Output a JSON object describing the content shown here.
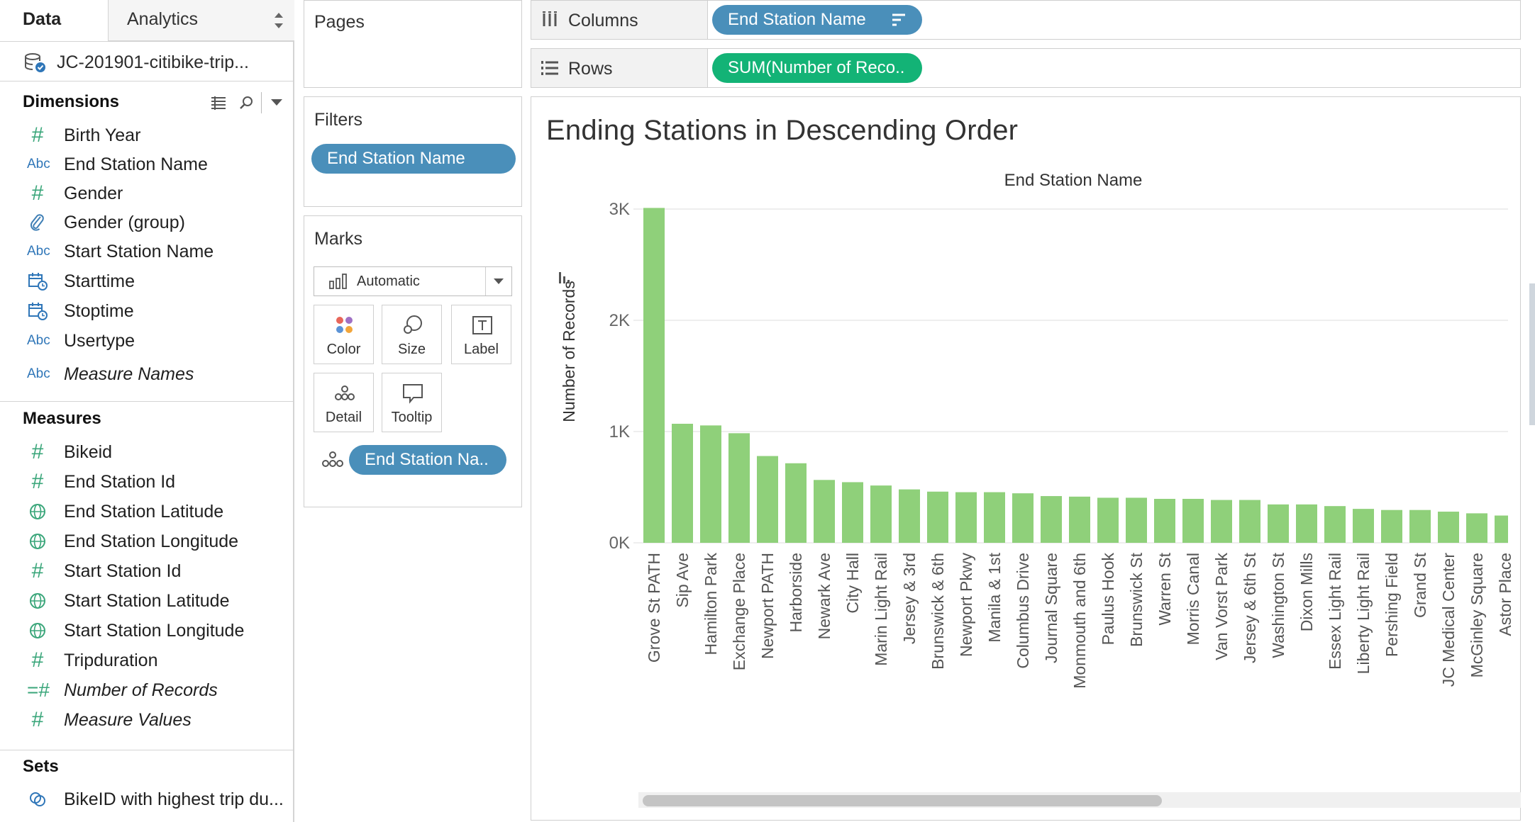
{
  "data_pane": {
    "tabs": [
      {
        "label": "Data"
      },
      {
        "label": "Analytics"
      }
    ],
    "datasource": "JC-201901-citibike-trip...",
    "sections": {
      "dimensions": "Dimensions",
      "measures": "Measures",
      "sets": "Sets"
    },
    "dimensions": [
      {
        "icon": "#",
        "label": "Birth Year"
      },
      {
        "icon": "Abc",
        "label": "End Station Name"
      },
      {
        "icon": "#",
        "label": "Gender"
      },
      {
        "icon": "paperclip",
        "label": "Gender (group)"
      },
      {
        "icon": "Abc",
        "label": "Start Station Name"
      },
      {
        "icon": "datetime",
        "label": "Starttime"
      },
      {
        "icon": "datetime",
        "label": "Stoptime"
      },
      {
        "icon": "Abc",
        "label": "Usertype"
      },
      {
        "icon": "Abc",
        "label": "Measure Names"
      }
    ],
    "measures": [
      {
        "icon": "#",
        "label": "Bikeid"
      },
      {
        "icon": "#",
        "label": "End Station Id"
      },
      {
        "icon": "globe",
        "label": "End Station Latitude"
      },
      {
        "icon": "globe",
        "label": "End Station Longitude"
      },
      {
        "icon": "#",
        "label": "Start Station Id"
      },
      {
        "icon": "globe",
        "label": "Start Station Latitude"
      },
      {
        "icon": "globe",
        "label": "Start Station Longitude"
      },
      {
        "icon": "#",
        "label": "Tripduration"
      },
      {
        "icon": "=#",
        "label": "Number of Records"
      },
      {
        "icon": "#",
        "label": "Measure Values"
      }
    ],
    "sets": [
      {
        "icon": "set",
        "label": "BikeID with highest trip du..."
      }
    ]
  },
  "cards": {
    "pages": "Pages",
    "filters": "Filters",
    "filter_pill": "End Station Name",
    "marks": "Marks",
    "mark_type": "Automatic",
    "mark_buttons": [
      "Color",
      "Size",
      "Label",
      "Detail",
      "Tooltip"
    ],
    "detail_pill": "End Station Na.."
  },
  "shelves": {
    "columns_label": "Columns",
    "columns_pill": "End Station Name",
    "rows_label": "Rows",
    "rows_pill": "SUM(Number of Reco.."
  },
  "colors": {
    "bar": "#8fd07a",
    "pill_blue": "#4a8fba",
    "pill_green": "#13b376"
  },
  "chart_data": {
    "type": "bar",
    "title": "Ending Stations in Descending Order",
    "xlabel": "End Station Name",
    "ylabel": "Number of Records",
    "ylim": [
      0,
      3000
    ],
    "y_ticks": [
      {
        "value": 0,
        "label": "0K"
      },
      {
        "value": 1000,
        "label": "1K"
      },
      {
        "value": 2000,
        "label": "2K"
      },
      {
        "value": 3000,
        "label": "3K"
      }
    ],
    "grid": true,
    "categories": [
      "Grove St PATH",
      "Sip Ave",
      "Hamilton Park",
      "Exchange Place",
      "Newport PATH",
      "Harborside",
      "Newark Ave",
      "City Hall",
      "Marin Light Rail",
      "Jersey & 3rd",
      "Brunswick & 6th",
      "Newport Pkwy",
      "Manila & 1st",
      "Columbus Drive",
      "Journal Square",
      "Monmouth and 6th",
      "Paulus Hook",
      "Brunswick St",
      "Warren St",
      "Morris Canal",
      "Van Vorst Park",
      "Jersey & 6th St",
      "Washington St",
      "Dixon Mills",
      "Essex Light Rail",
      "Liberty Light Rail",
      "Pershing Field",
      "Grand St",
      "JC Medical Center",
      "McGinley Square",
      "Astor Place"
    ],
    "values": [
      3010,
      1070,
      1055,
      985,
      780,
      715,
      565,
      545,
      515,
      480,
      460,
      455,
      455,
      445,
      420,
      415,
      405,
      405,
      395,
      395,
      385,
      385,
      345,
      345,
      330,
      305,
      295,
      295,
      280,
      265,
      245
    ]
  }
}
